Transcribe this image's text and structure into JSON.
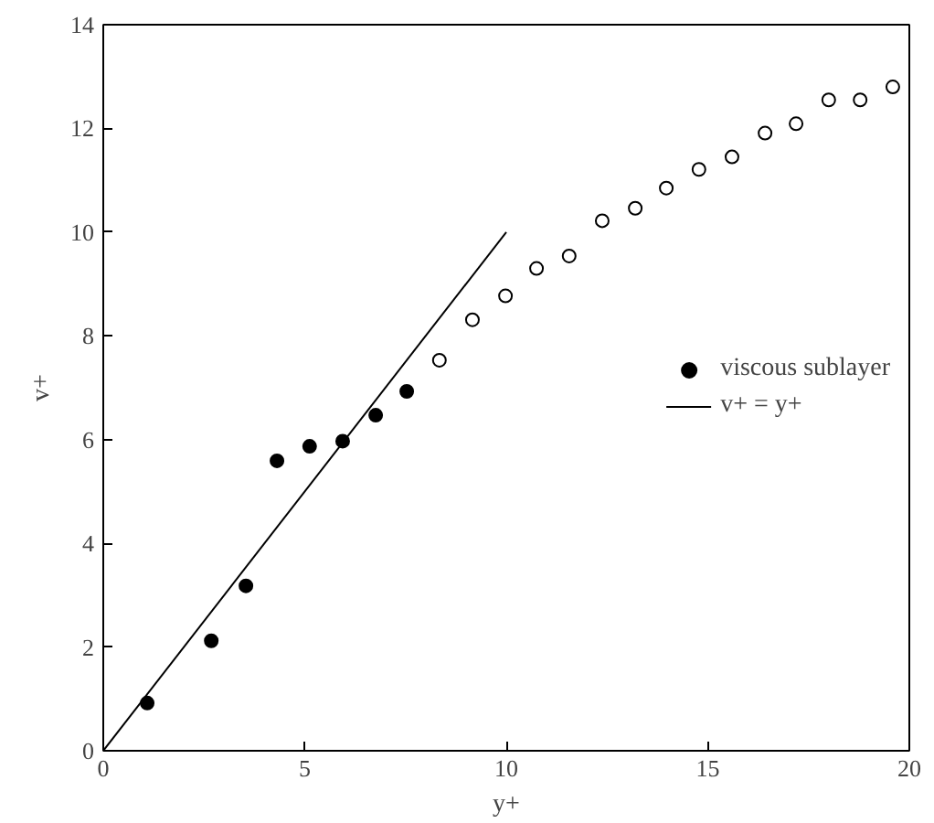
{
  "chart_data": {
    "type": "scatter",
    "xlabel": "y+",
    "ylabel": "v+",
    "xlim": [
      0,
      20
    ],
    "ylim": [
      0,
      14
    ],
    "xticks": [
      0,
      5,
      10,
      15,
      20
    ],
    "yticks": [
      0,
      2,
      4,
      6,
      8,
      10,
      12,
      14
    ],
    "grid": false,
    "legend": "right",
    "marker": "circle",
    "series": [
      {
        "name": "viscous sublayer",
        "color": "#000000",
        "x": [
          1.09,
          2.68,
          3.54,
          4.31,
          5.12,
          5.94,
          6.76,
          7.53
        ],
        "values": [
          0.92,
          2.12,
          3.18,
          5.59,
          5.87,
          5.97,
          6.47,
          6.93
        ]
      },
      {
        "color": "#ffffff",
        "x": [
          8.34,
          9.16,
          9.98,
          10.75,
          11.56,
          12.38,
          13.2,
          13.97,
          14.78,
          15.6,
          16.42,
          17.19,
          18.0,
          18.78,
          19.59
        ],
        "values": [
          7.53,
          8.31,
          8.77,
          9.3,
          9.54,
          10.22,
          10.46,
          10.85,
          11.21,
          11.45,
          11.91,
          12.09,
          12.55,
          12.55,
          12.8
        ]
      },
      {
        "name": "v+ = y+",
        "type": "line",
        "marker": "none",
        "color": "#000000",
        "line_style": "solid",
        "x": [
          0,
          10
        ],
        "values": [
          0,
          10
        ]
      }
    ]
  }
}
